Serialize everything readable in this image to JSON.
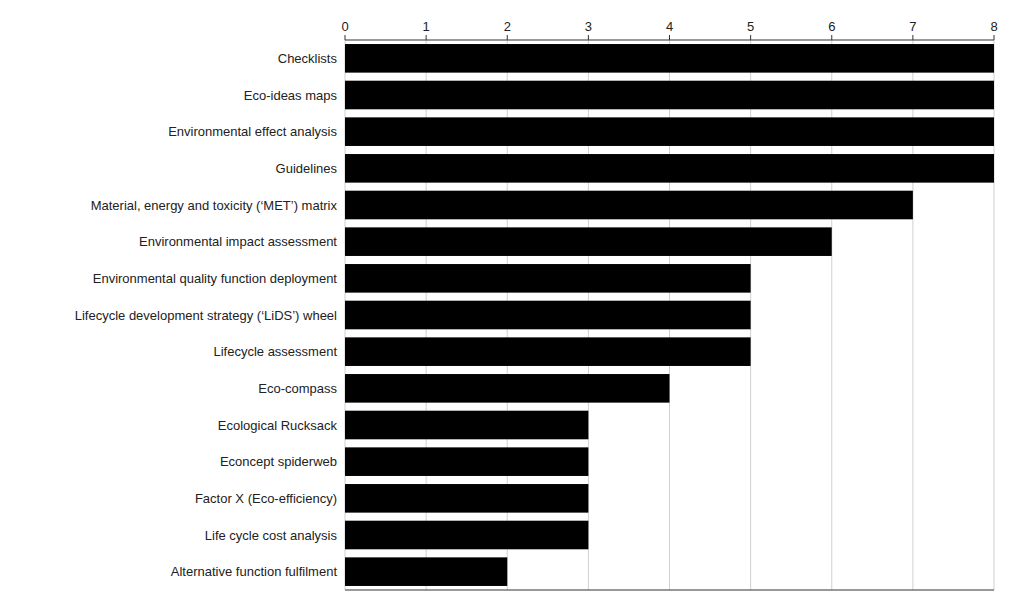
{
  "chart_data": {
    "type": "bar",
    "orientation": "horizontal",
    "categories": [
      "Alternative function fulfilment",
      "Life cycle cost analysis",
      "Factor X (Eco-efficiency)",
      "Econcept spiderweb",
      "Ecological Rucksack",
      "Eco-compass",
      "Lifecycle assessment",
      "Lifecycle development strategy (‘LiDS’) wheel",
      "Environmental quality function deployment",
      "Environmental impact assessment",
      "Material, energy and toxicity (‘MET’) matrix",
      "Guidelines",
      "Environmental effect analysis",
      "Eco-ideas maps",
      "Checklists"
    ],
    "values": [
      2.0,
      3.0,
      3.0,
      3.0,
      3.0,
      4.0,
      5.0,
      5.0,
      5.0,
      6.0,
      7.0,
      8.0,
      8.0,
      8.0,
      8.0
    ],
    "color": "#000000",
    "xlim": [
      0,
      8
    ],
    "xticks": [
      0,
      1,
      2,
      3,
      4,
      5,
      6,
      7,
      8
    ],
    "grid": true
  }
}
